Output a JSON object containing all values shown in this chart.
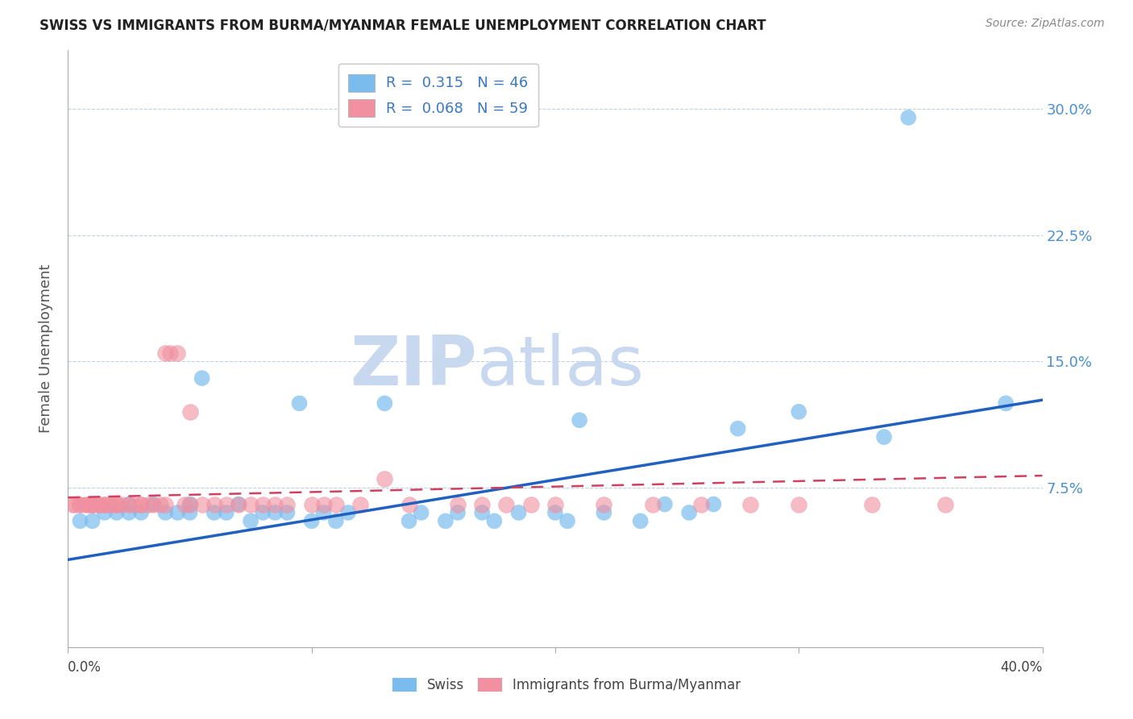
{
  "title": "SWISS VS IMMIGRANTS FROM BURMA/MYANMAR FEMALE UNEMPLOYMENT CORRELATION CHART",
  "source": "Source: ZipAtlas.com",
  "ylabel": "Female Unemployment",
  "ytick_labels": [
    "7.5%",
    "15.0%",
    "22.5%",
    "30.0%"
  ],
  "ytick_values": [
    0.075,
    0.15,
    0.225,
    0.3
  ],
  "xlim": [
    0.0,
    0.4
  ],
  "ylim": [
    -0.02,
    0.335
  ],
  "legend_blue_r": "R =  0.315",
  "legend_blue_n": "N = 46",
  "legend_pink_r": "R =  0.068",
  "legend_pink_n": "N = 59",
  "blue_color": "#7bbcee",
  "pink_color": "#f090a0",
  "trend_blue_color": "#2060c0",
  "trend_pink_color": "#d04060",
  "watermark_zip_color": "#c8d8ee",
  "watermark_atlas_color": "#c8d8ee",
  "swiss_x": [
    0.005,
    0.01,
    0.015,
    0.02,
    0.025,
    0.025,
    0.03,
    0.035,
    0.04,
    0.045,
    0.05,
    0.05,
    0.055,
    0.06,
    0.065,
    0.07,
    0.075,
    0.08,
    0.085,
    0.09,
    0.095,
    0.1,
    0.105,
    0.11,
    0.115,
    0.13,
    0.14,
    0.145,
    0.155,
    0.16,
    0.17,
    0.175,
    0.185,
    0.2,
    0.205,
    0.21,
    0.22,
    0.235,
    0.245,
    0.255,
    0.265,
    0.275,
    0.3,
    0.335,
    0.345,
    0.385
  ],
  "swiss_y": [
    0.055,
    0.055,
    0.06,
    0.06,
    0.06,
    0.065,
    0.06,
    0.065,
    0.06,
    0.06,
    0.065,
    0.06,
    0.14,
    0.06,
    0.06,
    0.065,
    0.055,
    0.06,
    0.06,
    0.06,
    0.125,
    0.055,
    0.06,
    0.055,
    0.06,
    0.125,
    0.055,
    0.06,
    0.055,
    0.06,
    0.06,
    0.055,
    0.06,
    0.06,
    0.055,
    0.115,
    0.06,
    0.055,
    0.065,
    0.06,
    0.065,
    0.11,
    0.12,
    0.105,
    0.295,
    0.125
  ],
  "burma_x": [
    0.002,
    0.003,
    0.005,
    0.005,
    0.007,
    0.008,
    0.009,
    0.01,
    0.01,
    0.01,
    0.012,
    0.013,
    0.015,
    0.015,
    0.017,
    0.018,
    0.02,
    0.02,
    0.022,
    0.025,
    0.027,
    0.03,
    0.03,
    0.033,
    0.035,
    0.038,
    0.04,
    0.04,
    0.042,
    0.045,
    0.048,
    0.05,
    0.05,
    0.055,
    0.06,
    0.065,
    0.07,
    0.075,
    0.08,
    0.085,
    0.09,
    0.1,
    0.105,
    0.11,
    0.12,
    0.13,
    0.14,
    0.16,
    0.17,
    0.18,
    0.19,
    0.2,
    0.22,
    0.24,
    0.26,
    0.28,
    0.3,
    0.33,
    0.36
  ],
  "burma_y": [
    0.065,
    0.065,
    0.065,
    0.065,
    0.065,
    0.065,
    0.065,
    0.065,
    0.065,
    0.065,
    0.065,
    0.065,
    0.065,
    0.065,
    0.065,
    0.065,
    0.065,
    0.065,
    0.065,
    0.065,
    0.065,
    0.065,
    0.065,
    0.065,
    0.065,
    0.065,
    0.065,
    0.155,
    0.155,
    0.155,
    0.065,
    0.065,
    0.12,
    0.065,
    0.065,
    0.065,
    0.065,
    0.065,
    0.065,
    0.065,
    0.065,
    0.065,
    0.065,
    0.065,
    0.065,
    0.08,
    0.065,
    0.065,
    0.065,
    0.065,
    0.065,
    0.065,
    0.065,
    0.065,
    0.065,
    0.065,
    0.065,
    0.065,
    0.065
  ],
  "blue_trend_x0": 0.0,
  "blue_trend_y0": 0.032,
  "blue_trend_x1": 0.4,
  "blue_trend_y1": 0.127,
  "pink_trend_x0": 0.0,
  "pink_trend_y0": 0.069,
  "pink_trend_x1": 0.4,
  "pink_trend_y1": 0.082
}
